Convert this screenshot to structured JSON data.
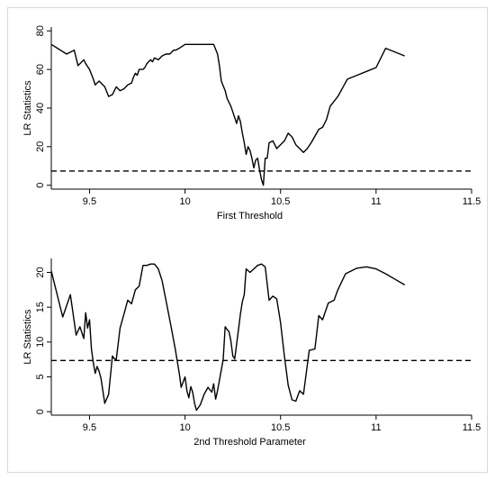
{
  "chart_data": [
    {
      "type": "line",
      "xlabel": "First Threshold",
      "ylabel": "LR Statistics",
      "xlim": [
        9.3,
        11.5
      ],
      "ylim": [
        -2,
        82
      ],
      "xticks": [
        "9.5",
        "10",
        "10.5",
        "11",
        "11.5"
      ],
      "yticks": [
        "0",
        "20",
        "40",
        "60",
        "80"
      ],
      "grid": false,
      "critical_value": 7.35,
      "series": [
        {
          "x": [
            9.3,
            9.38,
            9.42,
            9.44,
            9.47,
            9.48,
            9.5,
            9.52,
            9.53,
            9.55,
            9.56,
            9.58,
            9.6,
            9.62,
            9.63,
            9.64,
            9.66,
            9.68,
            9.7,
            9.72,
            9.73,
            9.74,
            9.75,
            9.76,
            9.78,
            9.79,
            9.8,
            9.82,
            9.83,
            9.84,
            9.86,
            9.88,
            9.9,
            9.92,
            9.94,
            9.95,
            9.97,
            10.0,
            10.05,
            10.1,
            10.15,
            10.17,
            10.18,
            10.19,
            10.21,
            10.22,
            10.24,
            10.25,
            10.26,
            10.27,
            10.28,
            10.29,
            10.3,
            10.31,
            10.32,
            10.33,
            10.34,
            10.35,
            10.36,
            10.37,
            10.38,
            10.39,
            10.4,
            10.41,
            10.42,
            10.43,
            10.44,
            10.46,
            10.48,
            10.5,
            10.52,
            10.54,
            10.56,
            10.58,
            10.6,
            10.62,
            10.64,
            10.66,
            10.7,
            10.72,
            10.74,
            10.76,
            10.8,
            10.85,
            10.9,
            10.95,
            11.0,
            11.05,
            11.15
          ],
          "values": [
            73,
            68,
            70,
            62,
            65,
            63,
            60,
            55,
            52,
            54,
            53,
            51,
            46,
            47,
            49,
            51,
            49,
            50,
            52,
            53,
            56,
            58,
            57,
            60,
            60,
            61,
            63,
            65,
            64,
            66,
            65,
            67,
            68,
            68,
            70,
            70,
            71,
            73,
            73,
            73,
            73,
            68,
            62,
            54,
            49,
            45,
            41,
            38,
            35,
            32,
            36,
            33,
            27,
            22,
            16,
            20,
            18,
            14,
            9,
            13,
            14,
            8,
            3,
            0,
            14,
            14,
            22,
            23,
            19,
            21,
            23,
            27,
            25,
            21,
            19,
            17,
            19,
            22,
            29,
            30,
            34,
            41,
            46,
            55,
            57,
            59,
            61,
            71,
            67
          ]
        }
      ]
    },
    {
      "type": "line",
      "xlabel": "2nd Threshold Parameter",
      "ylabel": "LR Statistics",
      "xlim": [
        9.3,
        11.5
      ],
      "ylim": [
        -0.5,
        22
      ],
      "xticks": [
        "9.5",
        "10",
        "10.5",
        "11",
        "11.5"
      ],
      "yticks": [
        "0",
        "5",
        "10",
        "15",
        "20"
      ],
      "grid": false,
      "critical_value": 7.35,
      "series": [
        {
          "x": [
            9.3,
            9.36,
            9.4,
            9.43,
            9.45,
            9.47,
            9.48,
            9.49,
            9.5,
            9.51,
            9.52,
            9.53,
            9.54,
            9.55,
            9.56,
            9.58,
            9.6,
            9.62,
            9.63,
            9.64,
            9.66,
            9.68,
            9.7,
            9.72,
            9.74,
            9.76,
            9.78,
            9.8,
            9.82,
            9.84,
            9.86,
            9.88,
            9.9,
            9.93,
            9.95,
            9.97,
            9.98,
            10.0,
            10.01,
            10.02,
            10.03,
            10.04,
            10.05,
            10.06,
            10.08,
            10.1,
            10.12,
            10.14,
            10.15,
            10.16,
            10.17,
            10.19,
            10.2,
            10.21,
            10.22,
            10.23,
            10.24,
            10.25,
            10.26,
            10.28,
            10.29,
            10.3,
            10.31,
            10.32,
            10.34,
            10.36,
            10.38,
            10.4,
            10.42,
            10.44,
            10.46,
            10.48,
            10.5,
            10.52,
            10.54,
            10.56,
            10.58,
            10.6,
            10.62,
            10.65,
            10.68,
            10.7,
            10.72,
            10.75,
            10.78,
            10.8,
            10.84,
            10.9,
            10.95,
            11.0,
            11.05,
            11.1,
            11.15
          ],
          "values": [
            20.2,
            13.6,
            16.8,
            11.0,
            12.2,
            10.5,
            14.2,
            12.0,
            13.2,
            9.0,
            7.0,
            5.5,
            6.5,
            5.8,
            4.8,
            1.2,
            2.5,
            8.0,
            7.6,
            7.5,
            12.0,
            14.0,
            16.0,
            15.5,
            17.5,
            18.0,
            21.0,
            21.0,
            21.2,
            21.2,
            20.5,
            18.8,
            16.0,
            11.8,
            8.8,
            5.5,
            3.5,
            5.0,
            3.0,
            2.0,
            3.6,
            2.8,
            1.2,
            0.2,
            1.0,
            2.5,
            3.5,
            2.8,
            4.0,
            1.8,
            3.0,
            6.0,
            7.5,
            12.2,
            11.8,
            11.5,
            10.2,
            8.0,
            7.6,
            11.8,
            14.0,
            15.8,
            16.8,
            20.5,
            20.0,
            20.5,
            21.0,
            21.2,
            20.8,
            16.0,
            16.6,
            16.2,
            12.8,
            8.0,
            3.8,
            1.7,
            1.5,
            3.0,
            2.5,
            8.8,
            9.0,
            13.8,
            13.2,
            15.6,
            16.0,
            17.5,
            19.8,
            20.6,
            20.8,
            20.5,
            19.8,
            19.0,
            18.2
          ]
        }
      ]
    }
  ]
}
